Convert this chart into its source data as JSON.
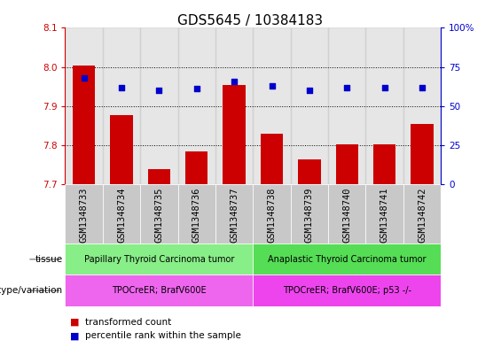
{
  "title": "GDS5645 / 10384183",
  "samples": [
    "GSM1348733",
    "GSM1348734",
    "GSM1348735",
    "GSM1348736",
    "GSM1348737",
    "GSM1348738",
    "GSM1348739",
    "GSM1348740",
    "GSM1348741",
    "GSM1348742"
  ],
  "transformed_count": [
    8.003,
    7.877,
    7.738,
    7.785,
    7.955,
    7.83,
    7.764,
    7.803,
    7.803,
    7.855
  ],
  "percentile_rank": [
    68,
    62,
    60,
    61,
    66,
    63,
    60,
    62,
    62,
    62
  ],
  "ylim_left": [
    7.7,
    8.1
  ],
  "ylim_right": [
    0,
    100
  ],
  "yticks_left": [
    7.7,
    7.8,
    7.9,
    8.0,
    8.1
  ],
  "yticks_right": [
    0,
    25,
    50,
    75,
    100
  ],
  "bar_color": "#cc0000",
  "dot_color": "#0000cc",
  "bar_width": 0.6,
  "tissue_groups": [
    {
      "label": "Papillary Thyroid Carcinoma tumor",
      "start": 0,
      "end": 5,
      "color": "#88ee88"
    },
    {
      "label": "Anaplastic Thyroid Carcinoma tumor",
      "start": 5,
      "end": 10,
      "color": "#55dd55"
    }
  ],
  "genotype_groups": [
    {
      "label": "TPOCreER; BrafV600E",
      "start": 0,
      "end": 5,
      "color": "#ee66ee"
    },
    {
      "label": "TPOCreER; BrafV600E; p53 -/-",
      "start": 5,
      "end": 10,
      "color": "#ee44ee"
    }
  ],
  "legend_items": [
    {
      "label": "transformed count",
      "color": "#cc0000",
      "marker": "s"
    },
    {
      "label": "percentile rank within the sample",
      "color": "#0000cc",
      "marker": "s"
    }
  ],
  "tissue_label": "tissue",
  "genotype_label": "genotype/variation",
  "col_bg_color": "#c8c8c8",
  "dotted_line_color": "#000000",
  "right_axis_color": "#0000cc",
  "left_axis_color": "#cc0000",
  "title_fontsize": 11,
  "tick_fontsize": 7.5,
  "label_fontsize": 7.5,
  "annot_fontsize": 7.0,
  "row_label_fontsize": 7.5
}
